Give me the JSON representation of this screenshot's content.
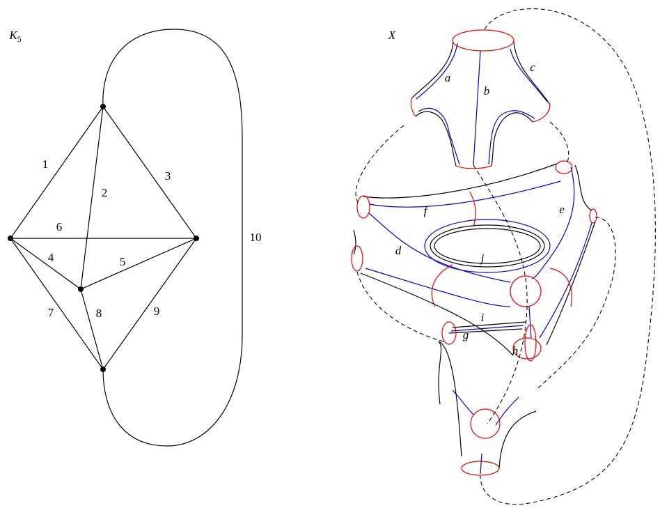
{
  "left": {
    "title": {
      "base": "K",
      "sub": "5"
    },
    "edges": [
      "1",
      "2",
      "3",
      "4",
      "5",
      "6",
      "7",
      "8",
      "9",
      "10"
    ]
  },
  "right": {
    "title": "X",
    "labels": [
      "a",
      "b",
      "c",
      "d",
      "e",
      "f",
      "g",
      "h",
      "i",
      "j"
    ]
  }
}
